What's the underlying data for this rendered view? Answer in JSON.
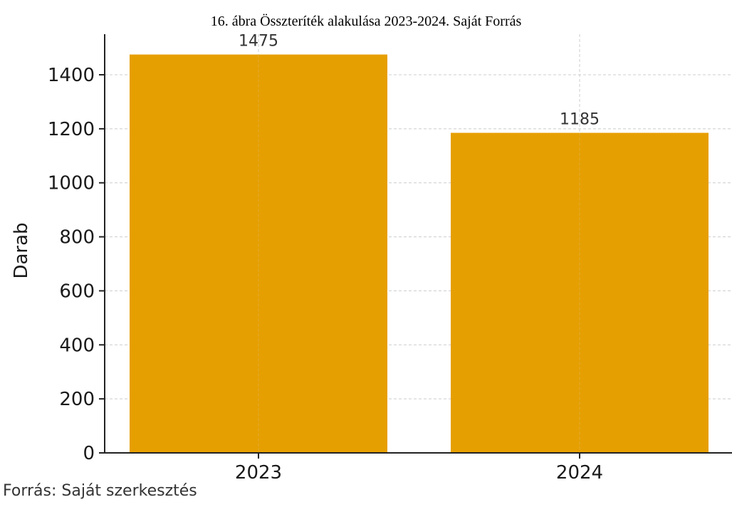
{
  "caption": "16. ábra Összteríték alakulása 2023-2024. Saját Forrás",
  "source_note": "Forrás: Saját szerkesztés",
  "chart_data": {
    "type": "bar",
    "categories": [
      "2023",
      "2024"
    ],
    "values": [
      1475,
      1185
    ],
    "data_labels": [
      "1475",
      "1185"
    ],
    "ylabel": "Darab",
    "xlabel": "",
    "ylim": [
      0,
      1500
    ],
    "yticks": [
      0,
      200,
      400,
      600,
      800,
      1000,
      1200,
      1400
    ],
    "grid": true,
    "bar_color": "#E69F00"
  }
}
